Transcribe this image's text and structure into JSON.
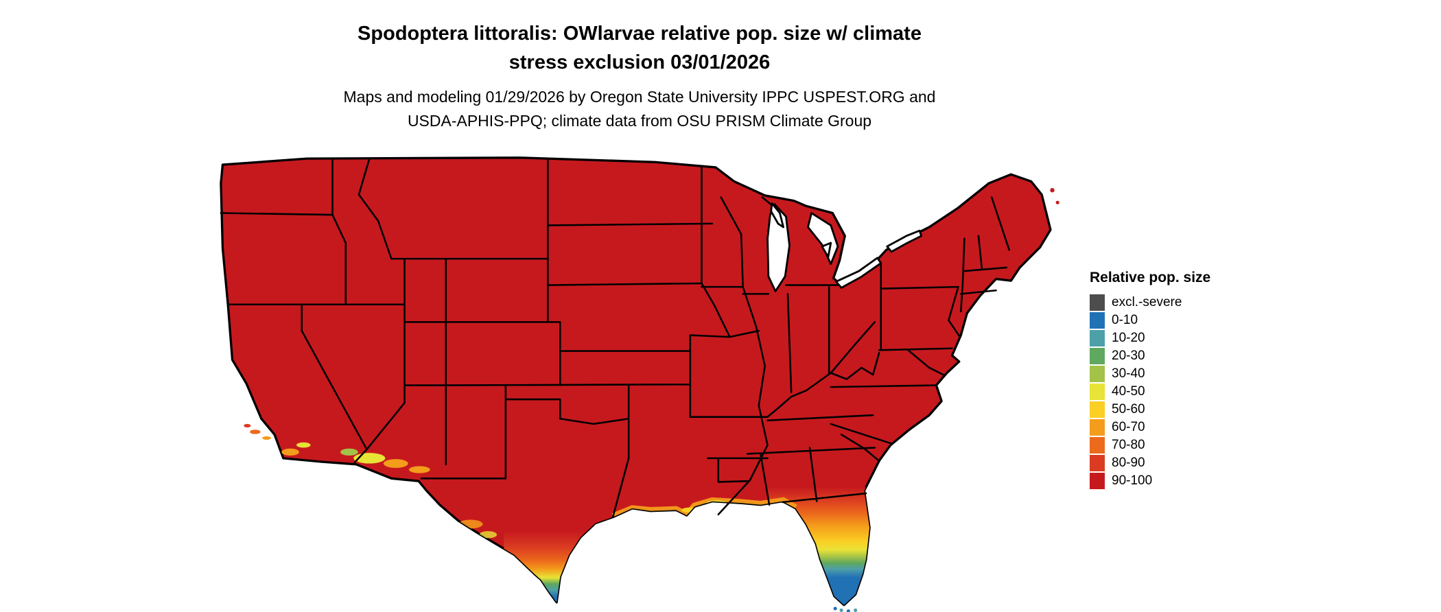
{
  "title": {
    "line1": "Spodoptera littoralis: OWlarvae relative pop. size w/ climate",
    "line2": "stress exclusion 03/01/2026"
  },
  "subtitle": {
    "line1": "Maps and modeling 01/29/2026 by Oregon State University IPPC USPEST.ORG and",
    "line2": "USDA-APHIS-PPQ; climate data from OSU PRISM Climate Group"
  },
  "legend": {
    "title": "Relative pop. size",
    "items": [
      {
        "label": "excl.-severe",
        "color": "#4d4d4d"
      },
      {
        "label": "0-10",
        "color": "#2171b5"
      },
      {
        "label": "10-20",
        "color": "#4d9fa8"
      },
      {
        "label": "20-30",
        "color": "#5fa85f"
      },
      {
        "label": "30-40",
        "color": "#a3c248"
      },
      {
        "label": "40-50",
        "color": "#e8e337"
      },
      {
        "label": "50-60",
        "color": "#fbcf24"
      },
      {
        "label": "60-70",
        "color": "#f49c1b"
      },
      {
        "label": "70-80",
        "color": "#ec6a1c"
      },
      {
        "label": "80-90",
        "color": "#da3b21"
      },
      {
        "label": "90-100",
        "color": "#c6191e"
      }
    ]
  },
  "map": {
    "region": "Contiguous United States",
    "base_color": "#c6191e",
    "border_color": "#000000",
    "water_color": "#ffffff"
  }
}
